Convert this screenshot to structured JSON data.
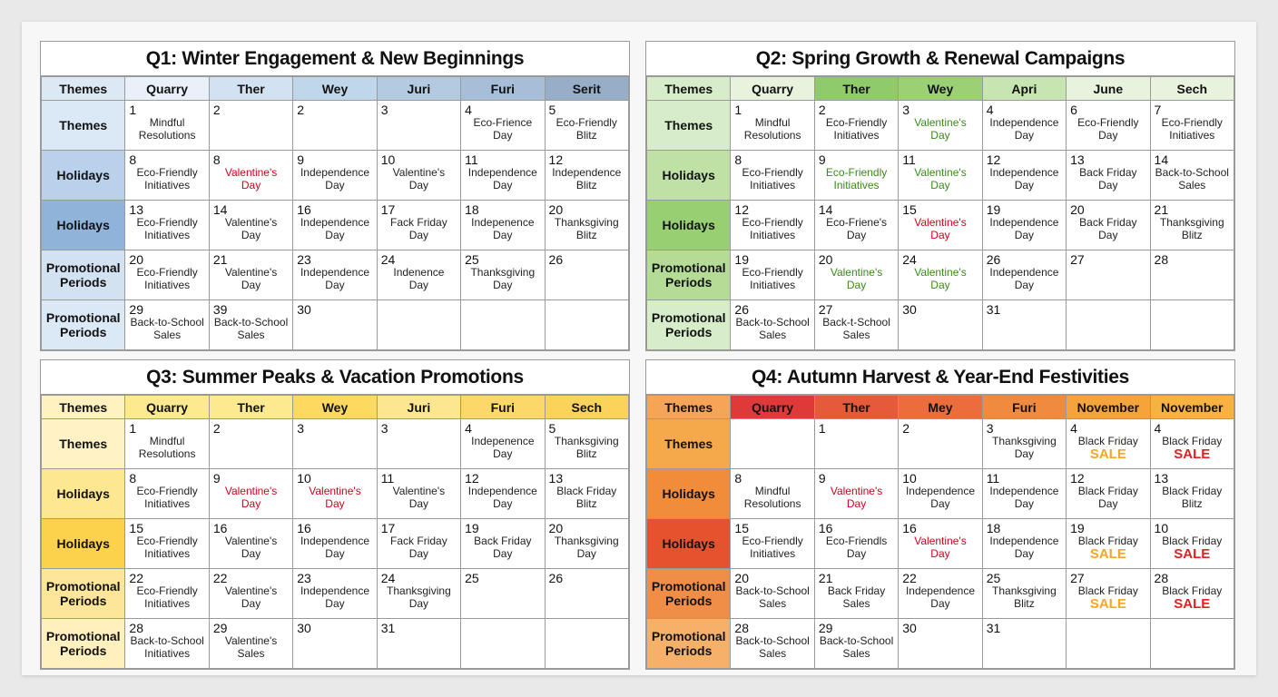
{
  "quarters": [
    {
      "title": "Q1: Winter Engagement & New Beginnings",
      "headers": [
        "Themes",
        "Quarry",
        "Ther",
        "Wey",
        "Juri",
        "Furi",
        "Serit"
      ],
      "rows": [
        {
          "label": "Themes",
          "cells": [
            {
              "day": 1,
              "lines": [
                "Mindful",
                "Resolutions"
              ]
            },
            {
              "day": 2
            },
            {
              "day": 2
            },
            {
              "day": 3
            },
            {
              "day": 4,
              "lines": [
                "Eco-Frience",
                "Day"
              ]
            },
            {
              "day": 5,
              "lines": [
                "Eco-Friendly",
                "Blitz"
              ]
            }
          ]
        },
        {
          "label": "Holidays",
          "cells": [
            {
              "day": 8,
              "lines": [
                "Eco-Friendly",
                "Initiatives"
              ]
            },
            {
              "day": 8,
              "lines": [
                "Valentine's",
                "Day"
              ],
              "color": "#d0021b"
            },
            {
              "day": 9,
              "lines": [
                "Independence",
                "Day"
              ]
            },
            {
              "day": 10,
              "lines": [
                "Valentine's",
                "Day"
              ]
            },
            {
              "day": 11,
              "lines": [
                "Independence",
                "Day"
              ]
            },
            {
              "day": 12,
              "lines": [
                "Independence",
                "Blitz"
              ]
            }
          ]
        },
        {
          "label": "Holidays",
          "cells": [
            {
              "day": 13,
              "lines": [
                "Eco-Friendly",
                "Initiatives"
              ]
            },
            {
              "day": 14,
              "lines": [
                "Valentine's",
                "Day"
              ]
            },
            {
              "day": 16,
              "lines": [
                "Independence",
                "Day"
              ]
            },
            {
              "day": 17,
              "lines": [
                "Fack Friday",
                "Day"
              ]
            },
            {
              "day": 18,
              "lines": [
                "Indepenence",
                "Day"
              ]
            },
            {
              "day": 20,
              "lines": [
                "Thanksgiving",
                "Blitz"
              ]
            }
          ]
        },
        {
          "label": "Promotional Periods",
          "cells": [
            {
              "day": 20,
              "lines": [
                "Eco-Friendly",
                "Initiatives"
              ]
            },
            {
              "day": 21,
              "lines": [
                "Valentine's",
                "Day"
              ]
            },
            {
              "day": 23,
              "lines": [
                "Independence",
                "Day"
              ]
            },
            {
              "day": 24,
              "lines": [
                "Indenence",
                "Day"
              ]
            },
            {
              "day": 25,
              "lines": [
                "Thanksgiving",
                "Day"
              ]
            },
            {
              "day": 26
            }
          ]
        },
        {
          "label": "Promotional Periods",
          "cells": [
            {
              "day": 29,
              "lines": [
                "Back-to-School",
                "Sales"
              ]
            },
            {
              "day": 39,
              "lines": [
                "Back-to-School",
                "Sales"
              ]
            },
            {
              "day": 30
            },
            null,
            null,
            null
          ]
        }
      ]
    },
    {
      "title": "Q2: Spring Growth & Renewal Campaigns",
      "headers": [
        "Themes",
        "Quarry",
        "Ther",
        "Wey",
        "Apri",
        "June",
        "Sech"
      ],
      "rows": [
        {
          "label": "Themes",
          "cells": [
            {
              "day": 1,
              "lines": [
                "Mindful",
                "Resolutions"
              ]
            },
            {
              "day": 2,
              "lines": [
                "Eco-Friendly",
                "Initiatives"
              ]
            },
            {
              "day": 3,
              "lines": [
                "Valentine's",
                "Day"
              ],
              "color": "#3a8a1a"
            },
            {
              "day": 4,
              "lines": [
                "Independence",
                "Day"
              ]
            },
            {
              "day": 6,
              "lines": [
                "Eco-Friendly",
                "Day"
              ]
            },
            {
              "day": 7,
              "lines": [
                "Eco-Friendly",
                "Initiatives"
              ]
            }
          ]
        },
        {
          "label": "Holidays",
          "cells": [
            {
              "day": 8,
              "lines": [
                "Eco-Friendly",
                "Initiatives"
              ]
            },
            {
              "day": 9,
              "lines": [
                "Eco-Friendly",
                "Initiatives"
              ],
              "color": "#3a8a1a"
            },
            {
              "day": 11,
              "lines": [
                "Valentine's",
                "Day"
              ],
              "color": "#3a8a1a"
            },
            {
              "day": 12,
              "lines": [
                "Independence",
                "Day"
              ]
            },
            {
              "day": 13,
              "lines": [
                "Back Friday",
                "Day"
              ]
            },
            {
              "day": 14,
              "lines": [
                "Back-to-School",
                "Sales"
              ]
            }
          ]
        },
        {
          "label": "Holidays",
          "cells": [
            {
              "day": 12,
              "lines": [
                "Eco-Friendly",
                "Initiatives"
              ]
            },
            {
              "day": 14,
              "lines": [
                "Eco-Friene's",
                "Day"
              ]
            },
            {
              "day": 15,
              "lines": [
                "Valentine's",
                "Day"
              ],
              "color": "#d0021b"
            },
            {
              "day": 19,
              "lines": [
                "Independence",
                "Day"
              ]
            },
            {
              "day": 20,
              "lines": [
                "Back Friday",
                "Day"
              ]
            },
            {
              "day": 21,
              "lines": [
                "Thanksgiving",
                "Blitz"
              ]
            }
          ]
        },
        {
          "label": "Promotional Periods",
          "cells": [
            {
              "day": 19,
              "lines": [
                "Eco-Friendly",
                "Initiatives"
              ]
            },
            {
              "day": 20,
              "lines": [
                "Valentine's",
                "Day"
              ],
              "color": "#3a8a1a"
            },
            {
              "day": 24,
              "lines": [
                "Valentine's",
                "Day"
              ],
              "color": "#3a8a1a"
            },
            {
              "day": 26,
              "lines": [
                "Independence",
                "Day"
              ]
            },
            {
              "day": 27
            },
            {
              "day": 28
            }
          ]
        },
        {
          "label": "Promotional Periods",
          "cells": [
            {
              "day": 26,
              "lines": [
                "Back-to-School",
                "Sales"
              ]
            },
            {
              "day": 27,
              "lines": [
                "Back-t-School",
                "Sales"
              ]
            },
            {
              "day": 30
            },
            {
              "day": 31
            },
            null,
            null
          ]
        }
      ]
    },
    {
      "title": "Q3: Summer Peaks & Vacation Promotions",
      "headers": [
        "Themes",
        "Quarry",
        "Ther",
        "Wey",
        "Juri",
        "Furi",
        "Sech"
      ],
      "rows": [
        {
          "label": "Themes",
          "cells": [
            {
              "day": 1,
              "lines": [
                "Mindful",
                "Resolutions"
              ]
            },
            {
              "day": 2
            },
            {
              "day": 3
            },
            {
              "day": 3
            },
            {
              "day": 4,
              "lines": [
                "Indepenence",
                "Day"
              ]
            },
            {
              "day": 5,
              "lines": [
                "Thanksgiving",
                "Blitz"
              ]
            }
          ]
        },
        {
          "label": "Holidays",
          "cells": [
            {
              "day": 8,
              "lines": [
                "Eco-Friendly",
                "Initiatives"
              ]
            },
            {
              "day": 9,
              "lines": [
                "Valentine's",
                "Day"
              ],
              "color": "#d0021b"
            },
            {
              "day": 10,
              "lines": [
                "Valentine's",
                "Day"
              ],
              "color": "#d0021b"
            },
            {
              "day": 11,
              "lines": [
                "Valentine's",
                "Day"
              ]
            },
            {
              "day": 12,
              "lines": [
                "Independence",
                "Day"
              ]
            },
            {
              "day": 13,
              "lines": [
                "Black Friday",
                "Blitz"
              ]
            }
          ]
        },
        {
          "label": "Holidays",
          "cells": [
            {
              "day": 15,
              "lines": [
                "Eco-Friendly",
                "Initiatives"
              ]
            },
            {
              "day": 16,
              "lines": [
                "Valentine's",
                "Day"
              ]
            },
            {
              "day": 16,
              "lines": [
                "Independence",
                "Day"
              ]
            },
            {
              "day": 17,
              "lines": [
                "Fack Friday",
                "Day"
              ]
            },
            {
              "day": 19,
              "lines": [
                "Back Friday",
                "Day"
              ]
            },
            {
              "day": 20,
              "lines": [
                "Thanksgiving",
                "Day"
              ]
            }
          ]
        },
        {
          "label": "Promotional Periods",
          "cells": [
            {
              "day": 22,
              "lines": [
                "Eco-Friendly",
                "Initiatives"
              ]
            },
            {
              "day": 22,
              "lines": [
                "Valentine's",
                "Day"
              ]
            },
            {
              "day": 23,
              "lines": [
                "Independence",
                "Day"
              ]
            },
            {
              "day": 24,
              "lines": [
                "Thanksgiving",
                "Day"
              ]
            },
            {
              "day": 25
            },
            {
              "day": 26
            }
          ]
        },
        {
          "label": "Promotional Periods",
          "cells": [
            {
              "day": 28,
              "lines": [
                "Back-to-School",
                "Initiatives"
              ]
            },
            {
              "day": 29,
              "lines": [
                "Valentine's",
                "Sales"
              ]
            },
            {
              "day": 30
            },
            {
              "day": 31
            },
            null,
            null
          ]
        }
      ]
    },
    {
      "title": "Q4: Autumn Harvest & Year-End Festivities",
      "headers": [
        "Themes",
        "Quarry",
        "Ther",
        "Mey",
        "Furi",
        "November",
        "November"
      ],
      "rows": [
        {
          "label": "Themes",
          "cells": [
            null,
            {
              "day": 1
            },
            {
              "day": 2
            },
            {
              "day": 3,
              "lines": [
                "Thanksgiving",
                "Day"
              ]
            },
            {
              "day": 4,
              "lines": [
                "Black Friday"
              ],
              "badge": "SALE"
            },
            {
              "day": 4,
              "lines": [
                "Black Friday"
              ],
              "badge": "SALE"
            }
          ]
        },
        {
          "label": "Holidays",
          "cells": [
            {
              "day": 8,
              "lines": [
                "Mindful",
                "Resolutions"
              ]
            },
            {
              "day": 9,
              "lines": [
                "Valentine's",
                "Day"
              ],
              "color": "#d0021b"
            },
            {
              "day": 10,
              "lines": [
                "Independence",
                "Day"
              ]
            },
            {
              "day": 11,
              "lines": [
                "Independence",
                "Day"
              ]
            },
            {
              "day": 12,
              "lines": [
                "Black Friday",
                "Day"
              ]
            },
            {
              "day": 13,
              "lines": [
                "Black Friday",
                "Blitz"
              ]
            }
          ]
        },
        {
          "label": "Holidays",
          "cells": [
            {
              "day": 15,
              "lines": [
                "Eco-Friendly",
                "Initiatives"
              ]
            },
            {
              "day": 16,
              "lines": [
                "Eco-Friendls",
                "Day"
              ]
            },
            {
              "day": 16,
              "lines": [
                "Valentine's",
                "Day"
              ],
              "color": "#d0021b"
            },
            {
              "day": 18,
              "lines": [
                "Independence",
                "Day"
              ]
            },
            {
              "day": 19,
              "lines": [
                "Black Friday"
              ],
              "badge": "SALE"
            },
            {
              "day": 10,
              "lines": [
                "Black Friday"
              ],
              "badge": "SALE"
            }
          ]
        },
        {
          "label": "Promotional Periods",
          "cells": [
            {
              "day": 20,
              "lines": [
                "Back-to-School",
                "Sales"
              ]
            },
            {
              "day": 21,
              "lines": [
                "Back Friday",
                "Sales"
              ]
            },
            {
              "day": 22,
              "lines": [
                "Independence",
                "Day"
              ]
            },
            {
              "day": 25,
              "lines": [
                "Thanksgiving",
                "Blitz"
              ]
            },
            {
              "day": 27,
              "lines": [
                "Black Friday"
              ],
              "badge": "SALE"
            },
            {
              "day": 28,
              "lines": [
                "Black Friday"
              ],
              "badge": "SALE"
            }
          ]
        },
        {
          "label": "Promotional Periods",
          "cells": [
            {
              "day": 28,
              "lines": [
                "Back-to-School",
                "Sales"
              ]
            },
            {
              "day": 29,
              "lines": [
                "Back-to-School",
                "Sales"
              ]
            },
            {
              "day": 30
            },
            {
              "day": 31
            },
            null,
            null
          ]
        }
      ]
    }
  ]
}
